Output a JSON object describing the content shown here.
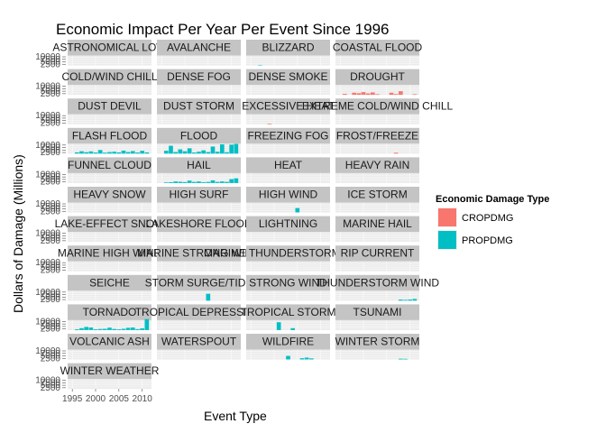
{
  "chart_data": {
    "type": "bar",
    "title": "Economic Impact Per Year Per Event Since 1996",
    "xlabel": "Event Type",
    "ylabel": "Dollars of Damage (Millions)",
    "x_ticks": [
      "1995",
      "2000",
      "2005",
      "2010"
    ],
    "xlim": [
      1994,
      2012
    ],
    "y_ticks": [
      "10000",
      "7500",
      "5000",
      "2500"
    ],
    "ylim": [
      0,
      12000
    ],
    "grid": true,
    "legend": {
      "title": "Economic Damage Type",
      "position": "right",
      "entries": [
        {
          "name": "CROPDMG",
          "color": "#F8766D"
        },
        {
          "name": "PROPDMG",
          "color": "#00BFC4"
        }
      ]
    },
    "facets": [
      {
        "name": "ASTRONOMICAL LOW",
        "bars": []
      },
      {
        "name": "AVALANCHE",
        "bars": []
      },
      {
        "name": "BLIZZARD",
        "bars": [
          {
            "year": 1997,
            "series": "PROPDMG",
            "value": 300
          }
        ]
      },
      {
        "name": "COASTAL FLOOD",
        "bars": []
      },
      {
        "name": "COLD/WIND CHILL",
        "bars": []
      },
      {
        "name": "DENSE FOG",
        "bars": []
      },
      {
        "name": "DENSE SMOKE",
        "bars": []
      },
      {
        "name": "DROUGHT",
        "bars": [
          {
            "year": 1996,
            "series": "CROPDMG",
            "value": 600
          },
          {
            "year": 1998,
            "series": "CROPDMG",
            "value": 1300
          },
          {
            "year": 1999,
            "series": "CROPDMG",
            "value": 1000
          },
          {
            "year": 2000,
            "series": "CROPDMG",
            "value": 1700
          },
          {
            "year": 2001,
            "series": "CROPDMG",
            "value": 900
          },
          {
            "year": 2002,
            "series": "CROPDMG",
            "value": 1500
          },
          {
            "year": 2003,
            "series": "CROPDMG",
            "value": 400
          },
          {
            "year": 2006,
            "series": "CROPDMG",
            "value": 1300
          },
          {
            "year": 2007,
            "series": "CROPDMG",
            "value": 500
          },
          {
            "year": 2008,
            "series": "CROPDMG",
            "value": 2300
          },
          {
            "year": 2011,
            "series": "CROPDMG",
            "value": 400
          }
        ]
      },
      {
        "name": "DUST DEVIL",
        "bars": []
      },
      {
        "name": "DUST STORM",
        "bars": []
      },
      {
        "name": "EXCESSIVE HEAT",
        "bars": [
          {
            "year": 1999,
            "series": "CROPDMG",
            "value": 400
          }
        ]
      },
      {
        "name": "EXTREME COLD/WIND CHILL",
        "bars": []
      },
      {
        "name": "FLASH FLOOD",
        "bars": [
          {
            "year": 1996,
            "series": "PROPDMG",
            "value": 800
          },
          {
            "year": 1997,
            "series": "PROPDMG",
            "value": 1500
          },
          {
            "year": 1998,
            "series": "PROPDMG",
            "value": 900
          },
          {
            "year": 1999,
            "series": "PROPDMG",
            "value": 1400
          },
          {
            "year": 2000,
            "series": "PROPDMG",
            "value": 700
          },
          {
            "year": 2001,
            "series": "PROPDMG",
            "value": 2300
          },
          {
            "year": 2002,
            "series": "PROPDMG",
            "value": 600
          },
          {
            "year": 2003,
            "series": "PROPDMG",
            "value": 1000
          },
          {
            "year": 2004,
            "series": "PROPDMG",
            "value": 1200
          },
          {
            "year": 2005,
            "series": "PROPDMG",
            "value": 800
          },
          {
            "year": 2006,
            "series": "PROPDMG",
            "value": 1900
          },
          {
            "year": 2007,
            "series": "PROPDMG",
            "value": 1000
          },
          {
            "year": 2008,
            "series": "PROPDMG",
            "value": 1600
          },
          {
            "year": 2009,
            "series": "PROPDMG",
            "value": 700
          },
          {
            "year": 2010,
            "series": "PROPDMG",
            "value": 1800
          },
          {
            "year": 2011,
            "series": "PROPDMG",
            "value": 800
          }
        ]
      },
      {
        "name": "FLOOD",
        "bars": [
          {
            "year": 1996,
            "series": "PROPDMG",
            "value": 1800
          },
          {
            "year": 1997,
            "series": "PROPDMG",
            "value": 5000
          },
          {
            "year": 1998,
            "series": "PROPDMG",
            "value": 1000
          },
          {
            "year": 1999,
            "series": "PROPDMG",
            "value": 2700
          },
          {
            "year": 2000,
            "series": "PROPDMG",
            "value": 1500
          },
          {
            "year": 2001,
            "series": "PROPDMG",
            "value": 3400
          },
          {
            "year": 2002,
            "series": "PROPDMG",
            "value": 700
          },
          {
            "year": 2003,
            "series": "PROPDMG",
            "value": 1200
          },
          {
            "year": 2004,
            "series": "PROPDMG",
            "value": 2100
          },
          {
            "year": 2005,
            "series": "PROPDMG",
            "value": 1000
          },
          {
            "year": 2006,
            "series": "PROPDMG",
            "value": 4500
          },
          {
            "year": 2007,
            "series": "PROPDMG",
            "value": 1200
          },
          {
            "year": 2008,
            "series": "PROPDMG",
            "value": 5900
          },
          {
            "year": 2009,
            "series": "PROPDMG",
            "value": 900
          },
          {
            "year": 2010,
            "series": "PROPDMG",
            "value": 5700
          },
          {
            "year": 2011,
            "series": "PROPDMG",
            "value": 6200
          }
        ]
      },
      {
        "name": "FREEZING FOG",
        "bars": []
      },
      {
        "name": "FROST/FREEZE",
        "bars": [
          {
            "year": 2007,
            "series": "CROPDMG",
            "value": 600
          }
        ]
      },
      {
        "name": "FUNNEL CLOUD",
        "bars": []
      },
      {
        "name": "HAIL",
        "bars": [
          {
            "year": 1996,
            "series": "PROPDMG",
            "value": 400
          },
          {
            "year": 1997,
            "series": "PROPDMG",
            "value": 500
          },
          {
            "year": 1998,
            "series": "PROPDMG",
            "value": 1000
          },
          {
            "year": 1999,
            "series": "PROPDMG",
            "value": 800
          },
          {
            "year": 2000,
            "series": "PROPDMG",
            "value": 600
          },
          {
            "year": 2001,
            "series": "PROPDMG",
            "value": 1500
          },
          {
            "year": 2002,
            "series": "PROPDMG",
            "value": 700
          },
          {
            "year": 2003,
            "series": "PROPDMG",
            "value": 1000
          },
          {
            "year": 2004,
            "series": "PROPDMG",
            "value": 500
          },
          {
            "year": 2005,
            "series": "PROPDMG",
            "value": 700
          },
          {
            "year": 2006,
            "series": "PROPDMG",
            "value": 1700
          },
          {
            "year": 2007,
            "series": "PROPDMG",
            "value": 700
          },
          {
            "year": 2008,
            "series": "PROPDMG",
            "value": 1000
          },
          {
            "year": 2009,
            "series": "PROPDMG",
            "value": 700
          },
          {
            "year": 2010,
            "series": "PROPDMG",
            "value": 2500
          },
          {
            "year": 2011,
            "series": "PROPDMG",
            "value": 3000
          }
        ]
      },
      {
        "name": "HEAT",
        "bars": []
      },
      {
        "name": "HEAVY RAIN",
        "bars": []
      },
      {
        "name": "HEAVY SNOW",
        "bars": []
      },
      {
        "name": "HIGH SURF",
        "bars": []
      },
      {
        "name": "HIGH WIND",
        "bars": [
          {
            "year": 2005,
            "series": "PROPDMG",
            "value": 2800
          }
        ]
      },
      {
        "name": "ICE STORM",
        "bars": []
      },
      {
        "name": "LAKE-EFFECT SNOW",
        "bars": []
      },
      {
        "name": "LAKESHORE FLOOD",
        "bars": []
      },
      {
        "name": "LIGHTNING",
        "bars": []
      },
      {
        "name": "MARINE HAIL",
        "bars": []
      },
      {
        "name": "MARINE HIGH WIND",
        "bars": []
      },
      {
        "name": "MARINE STRONG WIND",
        "bars": []
      },
      {
        "name": "MARINE THUNDERSTORM WIND",
        "bars": []
      },
      {
        "name": "RIP CURRENT",
        "bars": []
      },
      {
        "name": "SEICHE",
        "bars": []
      },
      {
        "name": "STORM SURGE/TIDE",
        "bars": [
          {
            "year": 2005,
            "series": "PROPDMG",
            "value": 4400
          }
        ]
      },
      {
        "name": "STRONG WIND",
        "bars": []
      },
      {
        "name": "THUNDERSTORM WIND",
        "bars": [
          {
            "year": 2008,
            "series": "PROPDMG",
            "value": 700
          },
          {
            "year": 2009,
            "series": "PROPDMG",
            "value": 500
          },
          {
            "year": 2010,
            "series": "PROPDMG",
            "value": 700
          },
          {
            "year": 2011,
            "series": "PROPDMG",
            "value": 1100
          }
        ]
      },
      {
        "name": "TORNADO",
        "bars": [
          {
            "year": 1996,
            "series": "PROPDMG",
            "value": 500
          },
          {
            "year": 1997,
            "series": "PROPDMG",
            "value": 1200
          },
          {
            "year": 1998,
            "series": "PROPDMG",
            "value": 2000
          },
          {
            "year": 1999,
            "series": "PROPDMG",
            "value": 1600
          },
          {
            "year": 2000,
            "series": "PROPDMG",
            "value": 500
          },
          {
            "year": 2001,
            "series": "PROPDMG",
            "value": 700
          },
          {
            "year": 2002,
            "series": "PROPDMG",
            "value": 800
          },
          {
            "year": 2003,
            "series": "PROPDMG",
            "value": 1500
          },
          {
            "year": 2004,
            "series": "PROPDMG",
            "value": 700
          },
          {
            "year": 2005,
            "series": "PROPDMG",
            "value": 500
          },
          {
            "year": 2006,
            "series": "PROPDMG",
            "value": 800
          },
          {
            "year": 2007,
            "series": "PROPDMG",
            "value": 1400
          },
          {
            "year": 2008,
            "series": "PROPDMG",
            "value": 1600
          },
          {
            "year": 2009,
            "series": "PROPDMG",
            "value": 600
          },
          {
            "year": 2010,
            "series": "PROPDMG",
            "value": 1100
          },
          {
            "year": 2011,
            "series": "PROPDMG",
            "value": 7000
          }
        ]
      },
      {
        "name": "TROPICAL DEPRESSION",
        "bars": []
      },
      {
        "name": "TROPICAL STORM",
        "bars": [
          {
            "year": 2001,
            "series": "PROPDMG",
            "value": 5000
          },
          {
            "year": 2004,
            "series": "PROPDMG",
            "value": 1200
          }
        ]
      },
      {
        "name": "TSUNAMI",
        "bars": []
      },
      {
        "name": "VOLCANIC ASH",
        "bars": []
      },
      {
        "name": "WATERSPOUT",
        "bars": []
      },
      {
        "name": "WILDFIRE",
        "bars": [
          {
            "year": 2003,
            "series": "PROPDMG",
            "value": 2300
          },
          {
            "year": 2006,
            "series": "PROPDMG",
            "value": 800
          },
          {
            "year": 2007,
            "series": "PROPDMG",
            "value": 1200
          },
          {
            "year": 2008,
            "series": "PROPDMG",
            "value": 700
          }
        ]
      },
      {
        "name": "WINTER STORM",
        "bars": [
          {
            "year": 2008,
            "series": "PROPDMG",
            "value": 500
          },
          {
            "year": 2009,
            "series": "PROPDMG",
            "value": 400
          }
        ]
      },
      {
        "name": "WINTER WEATHER",
        "bars": []
      }
    ]
  }
}
